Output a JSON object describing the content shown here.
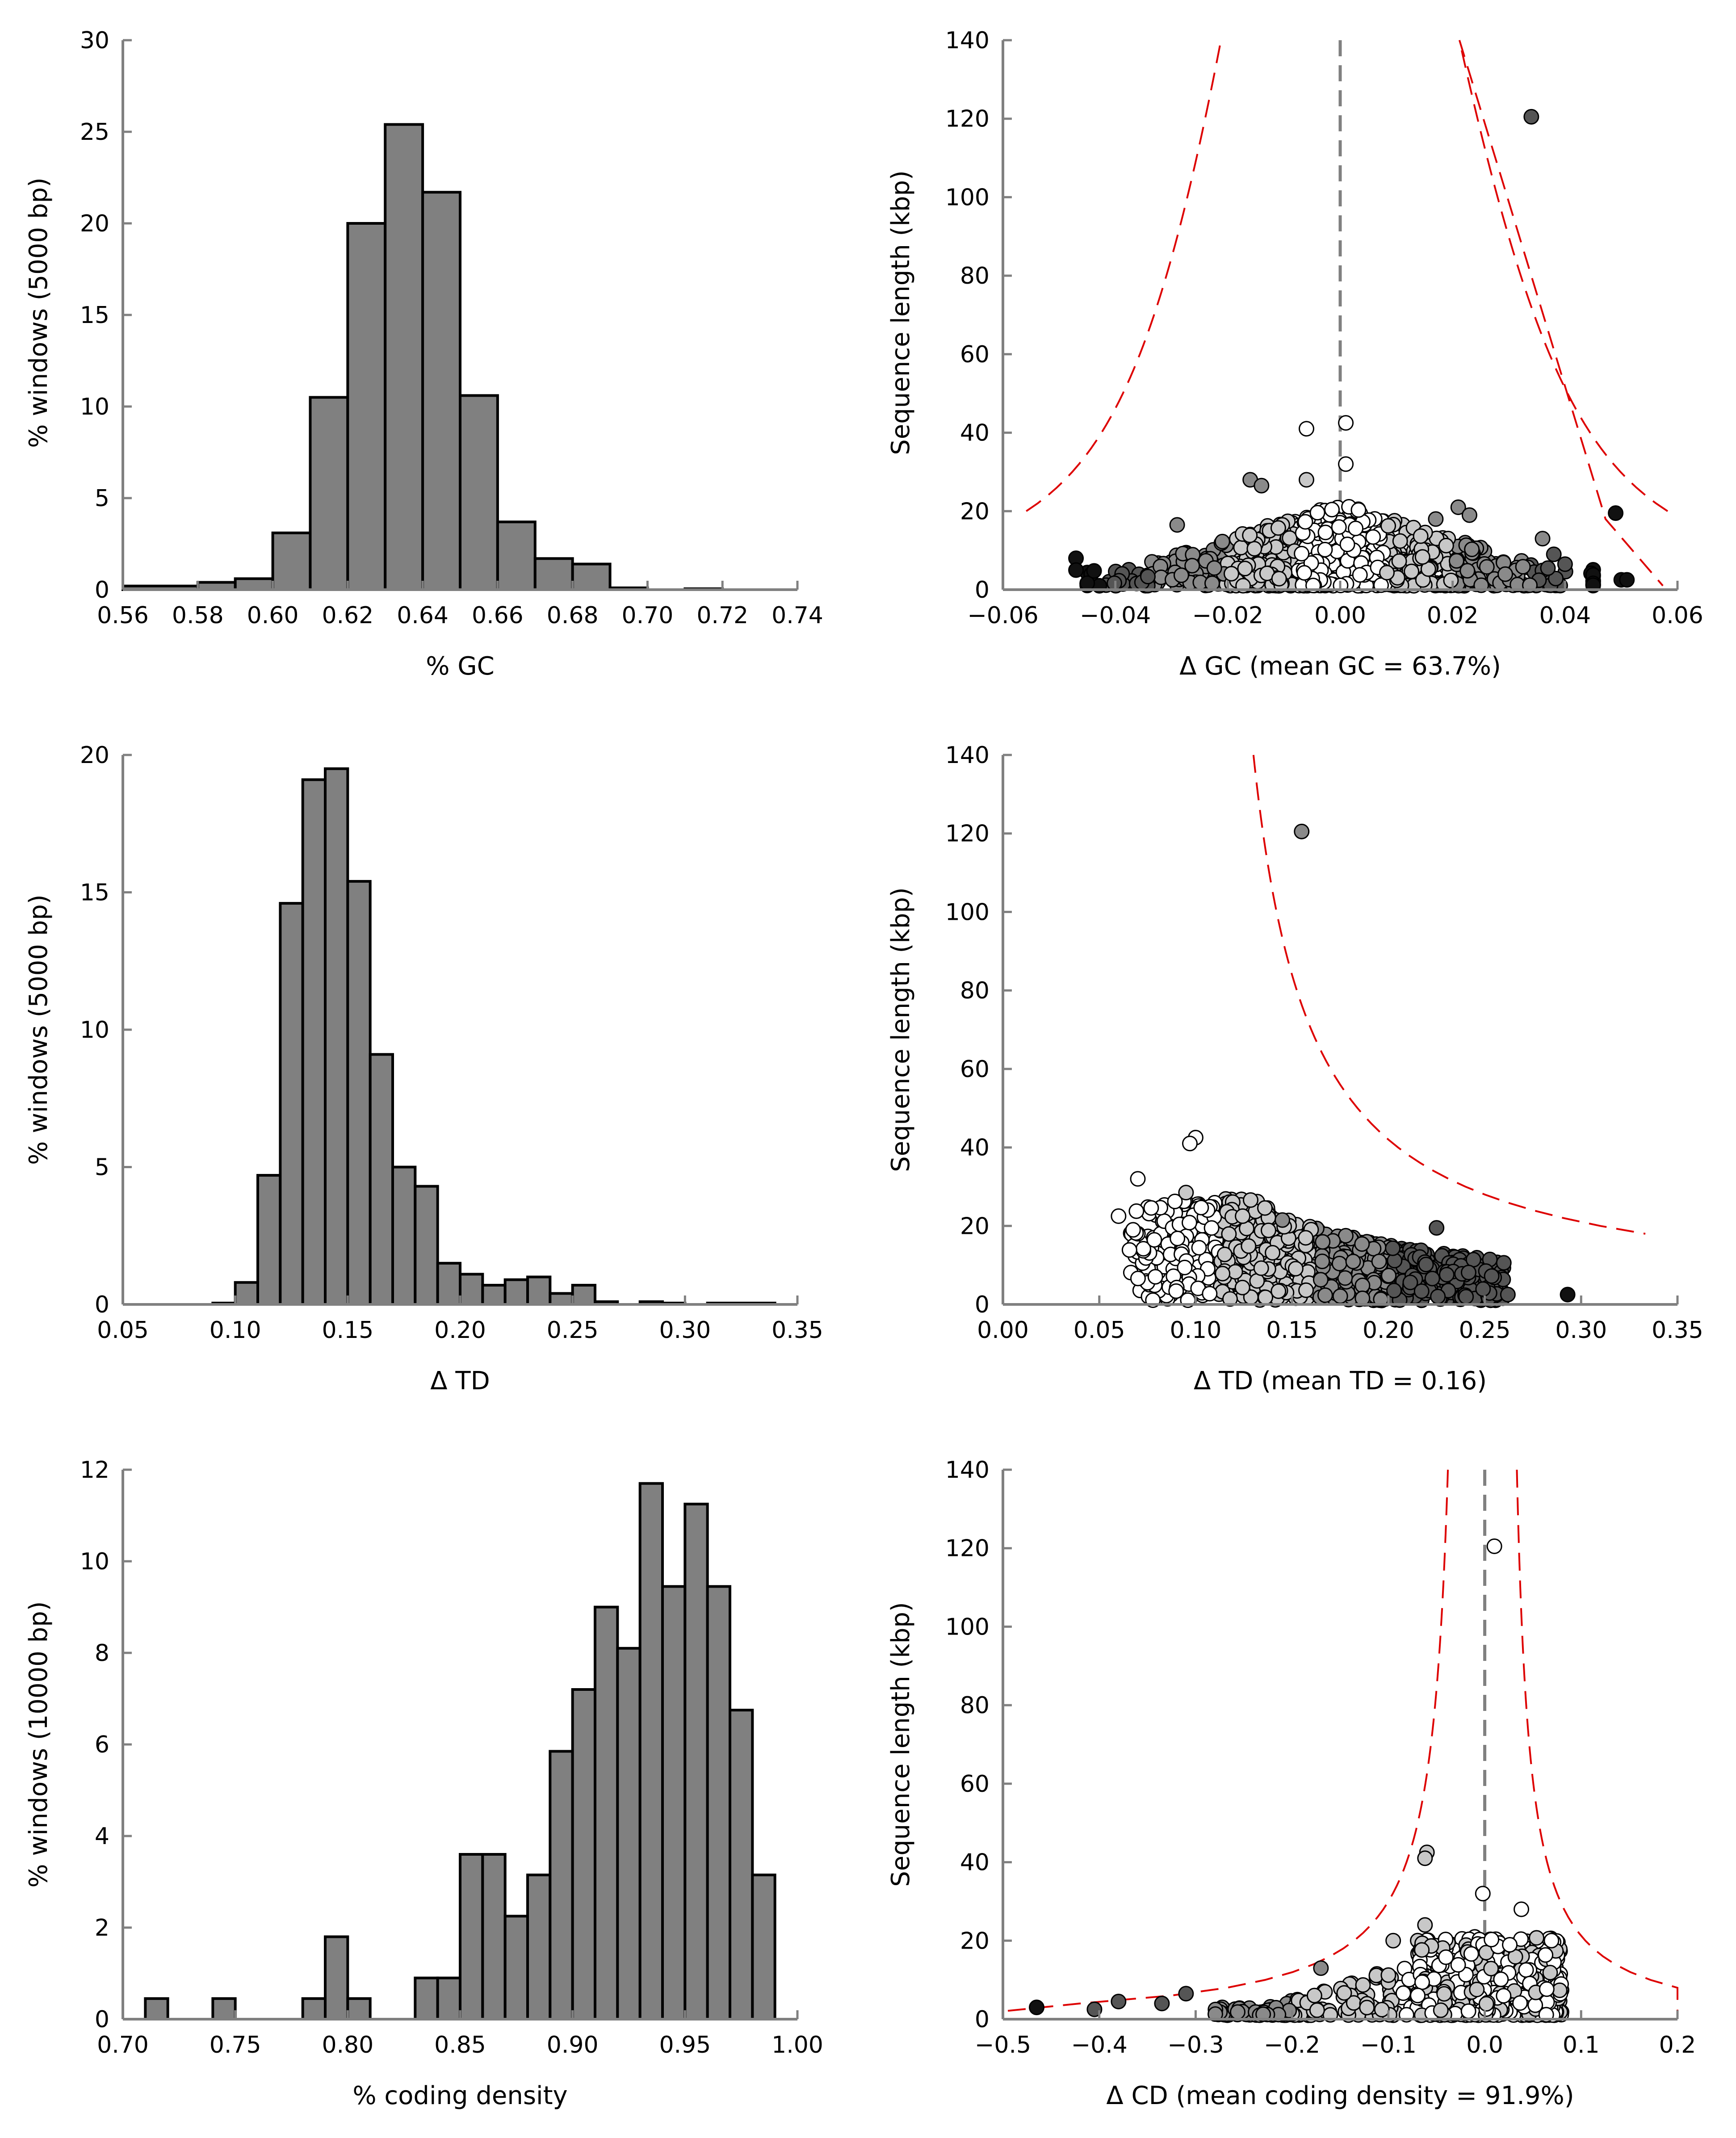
{
  "chart_data": [
    {
      "panel": "hist-gc",
      "type": "bar",
      "xlabel": "% GC",
      "ylabel": "% windows (5000 bp)",
      "xlim": [
        0.56,
        0.74
      ],
      "ylim": [
        0,
        30
      ],
      "xticks": [
        "0.56",
        "0.58",
        "0.60",
        "0.62",
        "0.64",
        "0.66",
        "0.68",
        "0.70",
        "0.72",
        "0.74"
      ],
      "yticks": [
        "0",
        "5",
        "10",
        "15",
        "20",
        "25",
        "30"
      ],
      "bins": [
        {
          "x0": 0.56,
          "x1": 0.58,
          "value": 0.2
        },
        {
          "x0": 0.58,
          "x1": 0.59,
          "value": 0.4
        },
        {
          "x0": 0.59,
          "x1": 0.6,
          "value": 0.6
        },
        {
          "x0": 0.6,
          "x1": 0.61,
          "value": 3.1
        },
        {
          "x0": 0.61,
          "x1": 0.62,
          "value": 10.5
        },
        {
          "x0": 0.62,
          "x1": 0.63,
          "value": 20.0
        },
        {
          "x0": 0.63,
          "x1": 0.64,
          "value": 25.4
        },
        {
          "x0": 0.64,
          "x1": 0.65,
          "value": 21.7
        },
        {
          "x0": 0.65,
          "x1": 0.66,
          "value": 10.6
        },
        {
          "x0": 0.66,
          "x1": 0.67,
          "value": 3.7
        },
        {
          "x0": 0.67,
          "x1": 0.68,
          "value": 1.7
        },
        {
          "x0": 0.68,
          "x1": 0.69,
          "value": 1.4
        },
        {
          "x0": 0.69,
          "x1": 0.7,
          "value": 0.1
        },
        {
          "x0": 0.71,
          "x1": 0.72,
          "value": 0.05
        }
      ],
      "bar_color": "#808080"
    },
    {
      "panel": "scatter-gc",
      "type": "scatter",
      "xlabel": "Δ GC (mean GC = 63.7%)",
      "ylabel": "Sequence length (kbp)",
      "xlim": [
        -0.06,
        0.06
      ],
      "ylim": [
        0,
        140
      ],
      "xticks": [
        "−0.06",
        "−0.04",
        "−0.02",
        "0.00",
        "0.02",
        "0.04",
        "0.06"
      ],
      "yticks": [
        "0",
        "20",
        "40",
        "60",
        "80",
        "100",
        "120",
        "140"
      ],
      "vline_x": 0,
      "highlight_points": [
        {
          "x": 0.034,
          "y": 120.5,
          "shade": "dark"
        },
        {
          "x": 0.049,
          "y": 19.5,
          "shade": "black"
        },
        {
          "x": 0.001,
          "y": 42.5,
          "shade": "white"
        },
        {
          "x": -0.006,
          "y": 41,
          "shade": "white"
        },
        {
          "x": 0.001,
          "y": 32,
          "shade": "white"
        },
        {
          "x": -0.016,
          "y": 28,
          "shade": "mid"
        },
        {
          "x": -0.014,
          "y": 26.5,
          "shade": "mid"
        },
        {
          "x": -0.006,
          "y": 28,
          "shade": "light"
        },
        {
          "x": 0.021,
          "y": 21,
          "shade": "mid"
        },
        {
          "x": 0.023,
          "y": 19,
          "shade": "mid"
        },
        {
          "x": 0.017,
          "y": 18,
          "shade": "mid"
        },
        {
          "x": -0.029,
          "y": 16.5,
          "shade": "mid"
        },
        {
          "x": -0.047,
          "y": 8,
          "shade": "black"
        },
        {
          "x": -0.047,
          "y": 5,
          "shade": "black"
        },
        {
          "x": 0.05,
          "y": 2.5,
          "shade": "black"
        },
        {
          "x": 0.051,
          "y": 2.5,
          "shade": "black"
        },
        {
          "x": 0.036,
          "y": 13,
          "shade": "mid"
        },
        {
          "x": 0.038,
          "y": 9,
          "shade": "dark"
        },
        {
          "x": 0.04,
          "y": 6.5,
          "shade": "dark"
        }
      ],
      "cloud": {
        "x_range": [
          -0.045,
          0.045
        ],
        "y_range": [
          1,
          21
        ],
        "n": 900
      }
    },
    {
      "panel": "hist-td",
      "type": "bar",
      "xlabel": "Δ TD",
      "ylabel": "% windows (5000 bp)",
      "xlim": [
        0.05,
        0.35
      ],
      "ylim": [
        0,
        20
      ],
      "xticks": [
        "0.05",
        "0.10",
        "0.15",
        "0.20",
        "0.25",
        "0.30",
        "0.35"
      ],
      "yticks": [
        "0",
        "5",
        "10",
        "15",
        "20"
      ],
      "bins": [
        {
          "x0": 0.09,
          "x1": 0.1,
          "value": 0.05
        },
        {
          "x0": 0.1,
          "x1": 0.11,
          "value": 0.8
        },
        {
          "x0": 0.11,
          "x1": 0.12,
          "value": 4.7
        },
        {
          "x0": 0.12,
          "x1": 0.13,
          "value": 14.6
        },
        {
          "x0": 0.13,
          "x1": 0.14,
          "value": 19.1
        },
        {
          "x0": 0.14,
          "x1": 0.15,
          "value": 19.5
        },
        {
          "x0": 0.15,
          "x1": 0.16,
          "value": 15.4
        },
        {
          "x0": 0.16,
          "x1": 0.17,
          "value": 9.1
        },
        {
          "x0": 0.17,
          "x1": 0.18,
          "value": 5.0
        },
        {
          "x0": 0.18,
          "x1": 0.19,
          "value": 4.3
        },
        {
          "x0": 0.19,
          "x1": 0.2,
          "value": 1.5
        },
        {
          "x0": 0.2,
          "x1": 0.21,
          "value": 1.1
        },
        {
          "x0": 0.21,
          "x1": 0.22,
          "value": 0.7
        },
        {
          "x0": 0.22,
          "x1": 0.23,
          "value": 0.9
        },
        {
          "x0": 0.23,
          "x1": 0.24,
          "value": 1.0
        },
        {
          "x0": 0.24,
          "x1": 0.25,
          "value": 0.4
        },
        {
          "x0": 0.25,
          "x1": 0.26,
          "value": 0.7
        },
        {
          "x0": 0.26,
          "x1": 0.27,
          "value": 0.1
        },
        {
          "x0": 0.28,
          "x1": 0.29,
          "value": 0.1
        },
        {
          "x0": 0.29,
          "x1": 0.3,
          "value": 0.05
        },
        {
          "x0": 0.31,
          "x1": 0.34,
          "value": 0.05
        }
      ],
      "bar_color": "#808080"
    },
    {
      "panel": "scatter-td",
      "type": "scatter",
      "xlabel": "Δ TD (mean TD = 0.16)",
      "ylabel": "Sequence length (kbp)",
      "xlim": [
        0.0,
        0.35
      ],
      "ylim": [
        0,
        140
      ],
      "xticks": [
        "0.00",
        "0.05",
        "0.10",
        "0.15",
        "0.20",
        "0.25",
        "0.30",
        "0.35"
      ],
      "yticks": [
        "0",
        "20",
        "40",
        "60",
        "80",
        "100",
        "120",
        "140"
      ],
      "highlight_points": [
        {
          "x": 0.155,
          "y": 120.5,
          "shade": "mid"
        },
        {
          "x": 0.1,
          "y": 42.5,
          "shade": "white"
        },
        {
          "x": 0.097,
          "y": 41,
          "shade": "white"
        },
        {
          "x": 0.07,
          "y": 32,
          "shade": "white"
        },
        {
          "x": 0.095,
          "y": 28.5,
          "shade": "light"
        },
        {
          "x": 0.06,
          "y": 22.5,
          "shade": "white"
        },
        {
          "x": 0.145,
          "y": 21.5,
          "shade": "mid"
        },
        {
          "x": 0.225,
          "y": 19.5,
          "shade": "dark"
        },
        {
          "x": 0.293,
          "y": 2.5,
          "shade": "black"
        },
        {
          "x": 0.262,
          "y": 2.5,
          "shade": "dark"
        }
      ],
      "cloud": {
        "x_range": [
          0.065,
          0.26
        ],
        "y_range": [
          1,
          26
        ],
        "n": 900
      }
    },
    {
      "panel": "hist-cd",
      "type": "bar",
      "xlabel": "% coding density",
      "ylabel": "% windows (10000 bp)",
      "xlim": [
        0.7,
        1.0
      ],
      "ylim": [
        0,
        12
      ],
      "xticks": [
        "0.70",
        "0.75",
        "0.80",
        "0.85",
        "0.90",
        "0.95",
        "1.00"
      ],
      "yticks": [
        "0",
        "2",
        "4",
        "6",
        "8",
        "10",
        "12"
      ],
      "bins": [
        {
          "x0": 0.71,
          "x1": 0.72,
          "value": 0.45
        },
        {
          "x0": 0.74,
          "x1": 0.75,
          "value": 0.45
        },
        {
          "x0": 0.78,
          "x1": 0.79,
          "value": 0.45
        },
        {
          "x0": 0.79,
          "x1": 0.8,
          "value": 1.8
        },
        {
          "x0": 0.8,
          "x1": 0.81,
          "value": 0.45
        },
        {
          "x0": 0.83,
          "x1": 0.84,
          "value": 0.9
        },
        {
          "x0": 0.84,
          "x1": 0.85,
          "value": 0.9
        },
        {
          "x0": 0.85,
          "x1": 0.86,
          "value": 3.6
        },
        {
          "x0": 0.86,
          "x1": 0.87,
          "value": 3.6
        },
        {
          "x0": 0.87,
          "x1": 0.88,
          "value": 2.25
        },
        {
          "x0": 0.88,
          "x1": 0.89,
          "value": 3.15
        },
        {
          "x0": 0.89,
          "x1": 0.9,
          "value": 5.85
        },
        {
          "x0": 0.9,
          "x1": 0.91,
          "value": 7.2
        },
        {
          "x0": 0.91,
          "x1": 0.92,
          "value": 9.0
        },
        {
          "x0": 0.92,
          "x1": 0.93,
          "value": 8.1
        },
        {
          "x0": 0.93,
          "x1": 0.94,
          "value": 11.7
        },
        {
          "x0": 0.94,
          "x1": 0.95,
          "value": 9.45
        },
        {
          "x0": 0.95,
          "x1": 0.96,
          "value": 11.25
        },
        {
          "x0": 0.96,
          "x1": 0.97,
          "value": 9.45
        },
        {
          "x0": 0.97,
          "x1": 0.98,
          "value": 6.75
        },
        {
          "x0": 0.98,
          "x1": 0.99,
          "value": 3.15
        }
      ],
      "bar_color": "#808080"
    },
    {
      "panel": "scatter-cd",
      "type": "scatter",
      "xlabel": "Δ CD (mean coding density = 91.9%)",
      "ylabel": "Sequence length (kbp)",
      "xlim": [
        -0.5,
        0.2
      ],
      "ylim": [
        0,
        140
      ],
      "xticks": [
        "−0.5",
        "−0.4",
        "−0.3",
        "−0.2",
        "−0.1",
        "0.0",
        "0.1",
        "0.2"
      ],
      "yticks": [
        "0",
        "20",
        "40",
        "60",
        "80",
        "100",
        "120",
        "140"
      ],
      "vline_x": 0,
      "highlight_points": [
        {
          "x": 0.01,
          "y": 120.5,
          "shade": "white"
        },
        {
          "x": -0.06,
          "y": 42.5,
          "shade": "light"
        },
        {
          "x": -0.062,
          "y": 41,
          "shade": "light"
        },
        {
          "x": -0.002,
          "y": 32,
          "shade": "white"
        },
        {
          "x": 0.038,
          "y": 28,
          "shade": "white"
        },
        {
          "x": -0.465,
          "y": 3,
          "shade": "black"
        },
        {
          "x": -0.405,
          "y": 2.5,
          "shade": "dark"
        },
        {
          "x": -0.38,
          "y": 4.5,
          "shade": "dark"
        },
        {
          "x": -0.335,
          "y": 4,
          "shade": "dark"
        },
        {
          "x": -0.31,
          "y": 6.5,
          "shade": "dark"
        },
        {
          "x": -0.17,
          "y": 13,
          "shade": "mid"
        },
        {
          "x": -0.095,
          "y": 20,
          "shade": "light"
        },
        {
          "x": -0.062,
          "y": 24,
          "shade": "light"
        }
      ],
      "cloud": {
        "x_range": [
          -0.28,
          0.08
        ],
        "y_range": [
          1,
          22
        ],
        "n": 900
      }
    }
  ],
  "colors": {
    "bar_fill": "#808080",
    "black": "#111111",
    "dark": "#555555",
    "mid": "#8a8a8a",
    "light": "#c8c8c8",
    "white": "#ffffff",
    "threshold_line": "#dd0000",
    "zero_line": "#808080",
    "axis": "#808080"
  }
}
